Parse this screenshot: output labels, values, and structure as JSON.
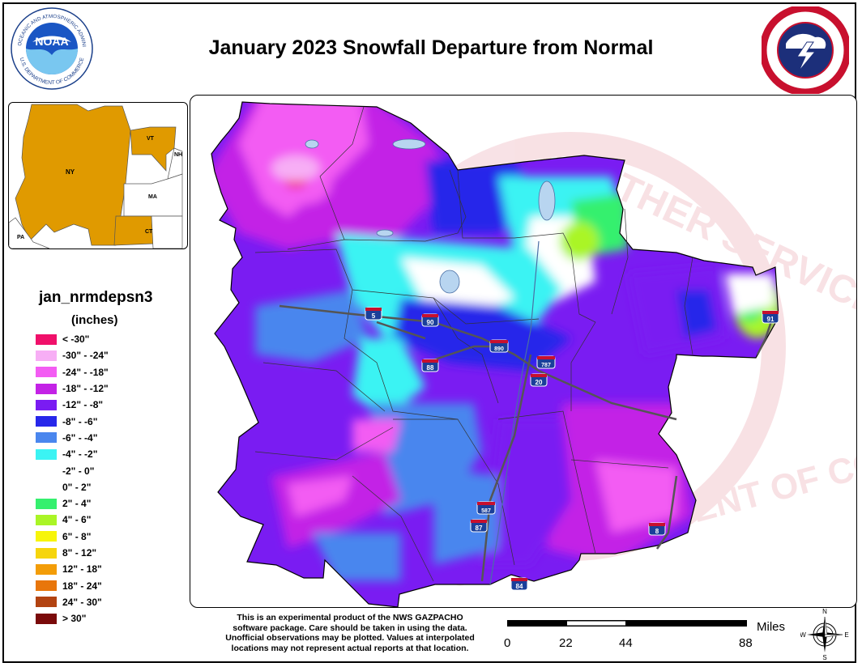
{
  "map": {
    "title": "January 2023 Snowfall Departure from Normal",
    "logos": {
      "left": "noaa-logo",
      "right": "nws-logo"
    },
    "noaa_logo": {
      "wordmark": "NOAA",
      "ring_text": "NATIONAL OCEANIC AND ATMOSPHERIC ADMINISTRATION",
      "ring_text_bottom": "U.S. DEPARTMENT OF COMMERCE"
    },
    "nws_logo": {
      "ring_text": "NATIONAL WEATHER SERVICE",
      "ring_text_bottom": "U.S. DEPARTMENT OF COMMERCE"
    },
    "watermark_text": "WEATHER SERVICE",
    "watermark_text_bottom": "U.S. DEPARTMENT OF COMMERCE",
    "inset": {
      "highlight_color": "#e09a00",
      "states": [
        "NY",
        "VT",
        "NH",
        "MA",
        "CT",
        "PA"
      ]
    },
    "interstates": [
      "5",
      "90",
      "890",
      "88",
      "787",
      "20",
      "587",
      "87",
      "84",
      "91",
      "8"
    ],
    "legend": {
      "title": "jan_nrmdepsn3",
      "units": "(inches)",
      "items": [
        {
          "label": "< -30\"",
          "color": "#f0106a"
        },
        {
          "label": "-30\" - -24\"",
          "color": "#f7aef5"
        },
        {
          "label": "-24\" - -18\"",
          "color": "#f35cf3"
        },
        {
          "label": "-18\" - -12\"",
          "color": "#c322e6"
        },
        {
          "label": "-12\" - -8\"",
          "color": "#7a1cf2"
        },
        {
          "label": "-8\" - -6\"",
          "color": "#2727ea"
        },
        {
          "label": "-6\" - -4\"",
          "color": "#4a86ee"
        },
        {
          "label": "-4\" - -2\"",
          "color": "#3bf3f3"
        },
        {
          "label": "-2\" - 0\"",
          "color": "#ffffff"
        },
        {
          "label": "0\" - 2\"",
          "color": "#ffffff"
        },
        {
          "label": "2\" - 4\"",
          "color": "#35f06e"
        },
        {
          "label": "4\" - 6\"",
          "color": "#aaf526"
        },
        {
          "label": "6\" - 8\"",
          "color": "#f7f50a"
        },
        {
          "label": "8\" - 12\"",
          "color": "#f6d50c"
        },
        {
          "label": "12\" - 18\"",
          "color": "#f39d08"
        },
        {
          "label": "18\" - 24\"",
          "color": "#e8760b"
        },
        {
          "label": "24\" - 30\"",
          "color": "#b24311"
        },
        {
          "label": "> 30\"",
          "color": "#7a0a0a"
        }
      ]
    },
    "disclaimer": [
      "This is an experimental product of the NWS GAZPACHO",
      "software package. Care should be taken in using the data.",
      "Unofficial observations may be plotted. Values at interpolated",
      "locations may not represent actual reports at that location."
    ],
    "scale": {
      "units": "Miles",
      "ticks": [
        "0",
        "22",
        "44",
        "88"
      ]
    },
    "compass": {
      "n": "N",
      "s": "S",
      "e": "E",
      "w": "W"
    }
  }
}
